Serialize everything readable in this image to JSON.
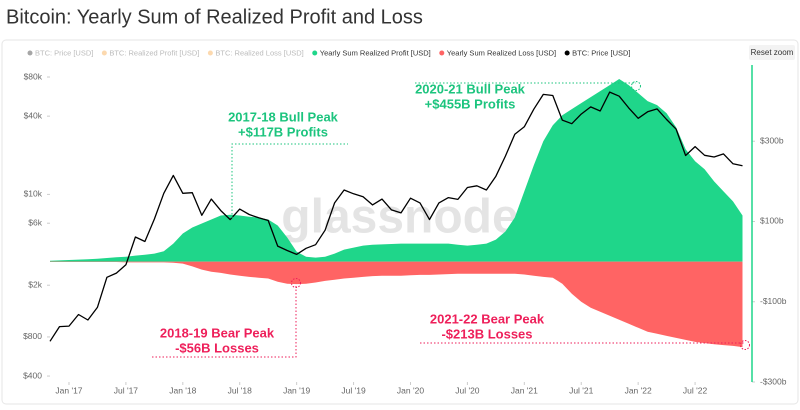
{
  "chart_data": {
    "type": "line",
    "title": "Bitcoin: Yearly Sum of Realized Profit and Loss",
    "reset_button": "Reset zoom",
    "watermark": "glassnode",
    "hidden_legend_items": [
      {
        "name": "BTC: Price [USD]",
        "color": "#000000"
      },
      {
        "name": "BTC: Realized Profit [USD]",
        "color": "#f7931a"
      },
      {
        "name": "BTC: Realized Loss [USD]",
        "color": "#f7931a"
      }
    ],
    "x": [
      "2016-11",
      "2016-12",
      "2017-01",
      "2017-02",
      "2017-03",
      "2017-04",
      "2017-05",
      "2017-06",
      "2017-07",
      "2017-08",
      "2017-09",
      "2017-10",
      "2017-11",
      "2017-12",
      "2018-01",
      "2018-02",
      "2018-03",
      "2018-04",
      "2018-05",
      "2018-06",
      "2018-07",
      "2018-08",
      "2018-09",
      "2018-10",
      "2018-11",
      "2018-12",
      "2019-01",
      "2019-02",
      "2019-03",
      "2019-04",
      "2019-05",
      "2019-06",
      "2019-07",
      "2019-08",
      "2019-09",
      "2019-10",
      "2019-11",
      "2019-12",
      "2020-01",
      "2020-02",
      "2020-03",
      "2020-04",
      "2020-05",
      "2020-06",
      "2020-07",
      "2020-08",
      "2020-09",
      "2020-10",
      "2020-11",
      "2020-12",
      "2021-01",
      "2021-02",
      "2021-03",
      "2021-04",
      "2021-05",
      "2021-06",
      "2021-07",
      "2021-08",
      "2021-09",
      "2021-10",
      "2021-11",
      "2021-12",
      "2022-01",
      "2022-02",
      "2022-03",
      "2022-04",
      "2022-05",
      "2022-06",
      "2022-07",
      "2022-08",
      "2022-09",
      "2022-10",
      "2022-11",
      "2022-12"
    ],
    "series": [
      {
        "name": "Yearly Sum Realized Profit [USD]",
        "color": "#1fd68a",
        "kind": "area",
        "axis": "y2",
        "values": [
          2,
          3,
          4,
          5,
          6,
          7,
          9,
          11,
          12,
          15,
          17,
          20,
          26,
          45,
          70,
          85,
          95,
          105,
          115,
          117,
          115,
          112,
          110,
          105,
          90,
          60,
          25,
          12,
          10,
          12,
          20,
          30,
          35,
          40,
          42,
          43,
          44,
          45,
          45,
          45,
          45,
          45,
          45,
          42,
          40,
          42,
          45,
          55,
          75,
          110,
          175,
          240,
          300,
          340,
          365,
          380,
          395,
          410,
          425,
          440,
          455,
          440,
          420,
          400,
          390,
          370,
          335,
          280,
          250,
          230,
          200,
          175,
          150,
          115
        ]
      },
      {
        "name": "Yearly Sum Realized Loss [USD]",
        "color": "#ff6464",
        "kind": "area",
        "axis": "y2",
        "values": [
          -1,
          -1,
          -1,
          -1,
          -1,
          -1,
          -1,
          -1,
          -2,
          -2,
          -2,
          -2,
          -2,
          -3,
          -5,
          -12,
          -20,
          -25,
          -28,
          -32,
          -35,
          -38,
          -40,
          -42,
          -50,
          -55,
          -56,
          -55,
          -52,
          -48,
          -45,
          -42,
          -40,
          -38,
          -36,
          -35,
          -35,
          -35,
          -34,
          -33,
          -33,
          -32,
          -31,
          -30,
          -30,
          -30,
          -30,
          -30,
          -30,
          -30,
          -32,
          -35,
          -38,
          -40,
          -55,
          -80,
          -100,
          -115,
          -125,
          -135,
          -145,
          -155,
          -165,
          -175,
          -180,
          -185,
          -190,
          -195,
          -200,
          -203,
          -206,
          -208,
          -210,
          -213
        ]
      },
      {
        "name": "BTC: Price [USD]",
        "color": "#000000",
        "kind": "line",
        "axis": "y",
        "values": [
          740,
          960,
          970,
          1190,
          1080,
          1350,
          2300,
          2480,
          2870,
          4700,
          4340,
          6470,
          10200,
          14000,
          10200,
          10300,
          6900,
          9200,
          7500,
          6400,
          7700,
          7000,
          6600,
          6300,
          4000,
          3700,
          3450,
          3850,
          4100,
          5300,
          8600,
          10800,
          10100,
          9600,
          8300,
          9200,
          7600,
          7200,
          9350,
          8600,
          6400,
          8600,
          9450,
          9150,
          11300,
          11650,
          10800,
          13800,
          19700,
          29000,
          33100,
          45200,
          58800,
          57700,
          37300,
          35000,
          41500,
          47100,
          43800,
          61300,
          57000,
          46300,
          38500,
          43200,
          45500,
          37700,
          31800,
          19900,
          23300,
          20000,
          19400,
          20500,
          17200,
          16600
        ]
      }
    ],
    "xlim": [
      "2016-11",
      "2023-01"
    ],
    "xticks": [
      {
        "value": "2017-01",
        "label": "Jan '17"
      },
      {
        "value": "2017-07",
        "label": "Jul '17"
      },
      {
        "value": "2018-01",
        "label": "Jan '18"
      },
      {
        "value": "2018-07",
        "label": "Jul '18"
      },
      {
        "value": "2019-01",
        "label": "Jan '19"
      },
      {
        "value": "2019-07",
        "label": "Jul '19"
      },
      {
        "value": "2020-01",
        "label": "Jan '20"
      },
      {
        "value": "2020-07",
        "label": "Jul '20"
      },
      {
        "value": "2021-01",
        "label": "Jan '21"
      },
      {
        "value": "2021-07",
        "label": "Jul '21"
      },
      {
        "value": "2022-01",
        "label": "Jan '22"
      },
      {
        "value": "2022-07",
        "label": "Jul '22"
      }
    ],
    "y_scale": "log",
    "ylim": [
      360,
      99000
    ],
    "yticks": [
      {
        "value": 400,
        "label": "$400"
      },
      {
        "value": 800,
        "label": "$800"
      },
      {
        "value": 2000,
        "label": "$2k"
      },
      {
        "value": 6000,
        "label": "$6k"
      },
      {
        "value": 10000,
        "label": "$10k"
      },
      {
        "value": 40000,
        "label": "$40k"
      },
      {
        "value": 80000,
        "label": "$80k"
      }
    ],
    "y2lim": [
      -300,
      490
    ],
    "y2ticks": [
      {
        "value": 300,
        "label": "$300b"
      },
      {
        "value": 100,
        "label": "$100b"
      },
      {
        "value": -100,
        "label": "-$100b"
      },
      {
        "value": -300,
        "label": "-$300b"
      }
    ],
    "y2_axis_color": "#1fd68a",
    "annotations": [
      {
        "title": "2017-18 Bull Peak",
        "text": "+$117B Profits",
        "color": "#1cc47e"
      },
      {
        "title": "2020-21 Bull Peak",
        "text": "+$455B Profits",
        "color": "#1cc47e"
      },
      {
        "title": "2018-19 Bear Peak",
        "text": "-$56B Losses",
        "color": "#ee1f5a"
      },
      {
        "title": "2021-22 Bear Peak",
        "text": "-$213B Losses",
        "color": "#ee1f5a"
      }
    ]
  }
}
